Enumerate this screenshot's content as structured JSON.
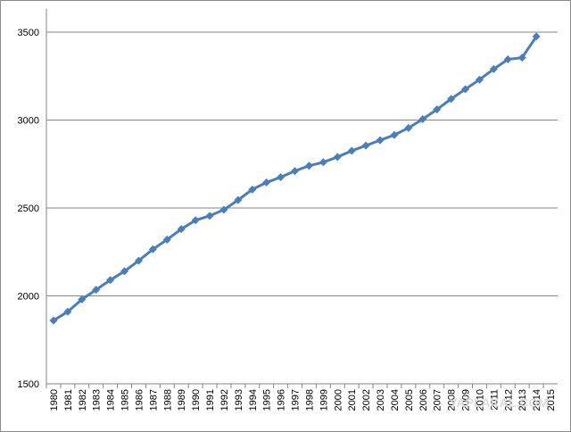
{
  "chart_data": {
    "type": "line",
    "categories": [
      "1980",
      "1981",
      "1982",
      "1983",
      "1984",
      "1985",
      "1986",
      "1987",
      "1988",
      "1989",
      "1990",
      "1991",
      "1992",
      "1993",
      "1994",
      "1995",
      "1996",
      "1997",
      "1998",
      "1999",
      "2000",
      "2001",
      "2002",
      "2003",
      "2004",
      "2005",
      "2006",
      "2007",
      "2008",
      "2009",
      "2010",
      "2011",
      "2012",
      "2013",
      "2014",
      "2015"
    ],
    "series": [
      {
        "color": "#4a7ebb",
        "values": [
          1860,
          1910,
          1980,
          2035,
          2090,
          2140,
          2200,
          2265,
          2320,
          2380,
          2430,
          2455,
          2490,
          2545,
          2605,
          2645,
          2675,
          2710,
          2740,
          2760,
          2790,
          2825,
          2855,
          2885,
          2915,
          2955,
          3005,
          3060,
          3120,
          3175,
          3230,
          3290,
          3345,
          3355,
          3475,
          null
        ]
      }
    ],
    "ylim": [
      1500,
      3500
    ],
    "yticks": [
      1500,
      2000,
      2500,
      3000,
      3500
    ],
    "grid": true,
    "watermark": "YAPLAKAL.COM"
  }
}
